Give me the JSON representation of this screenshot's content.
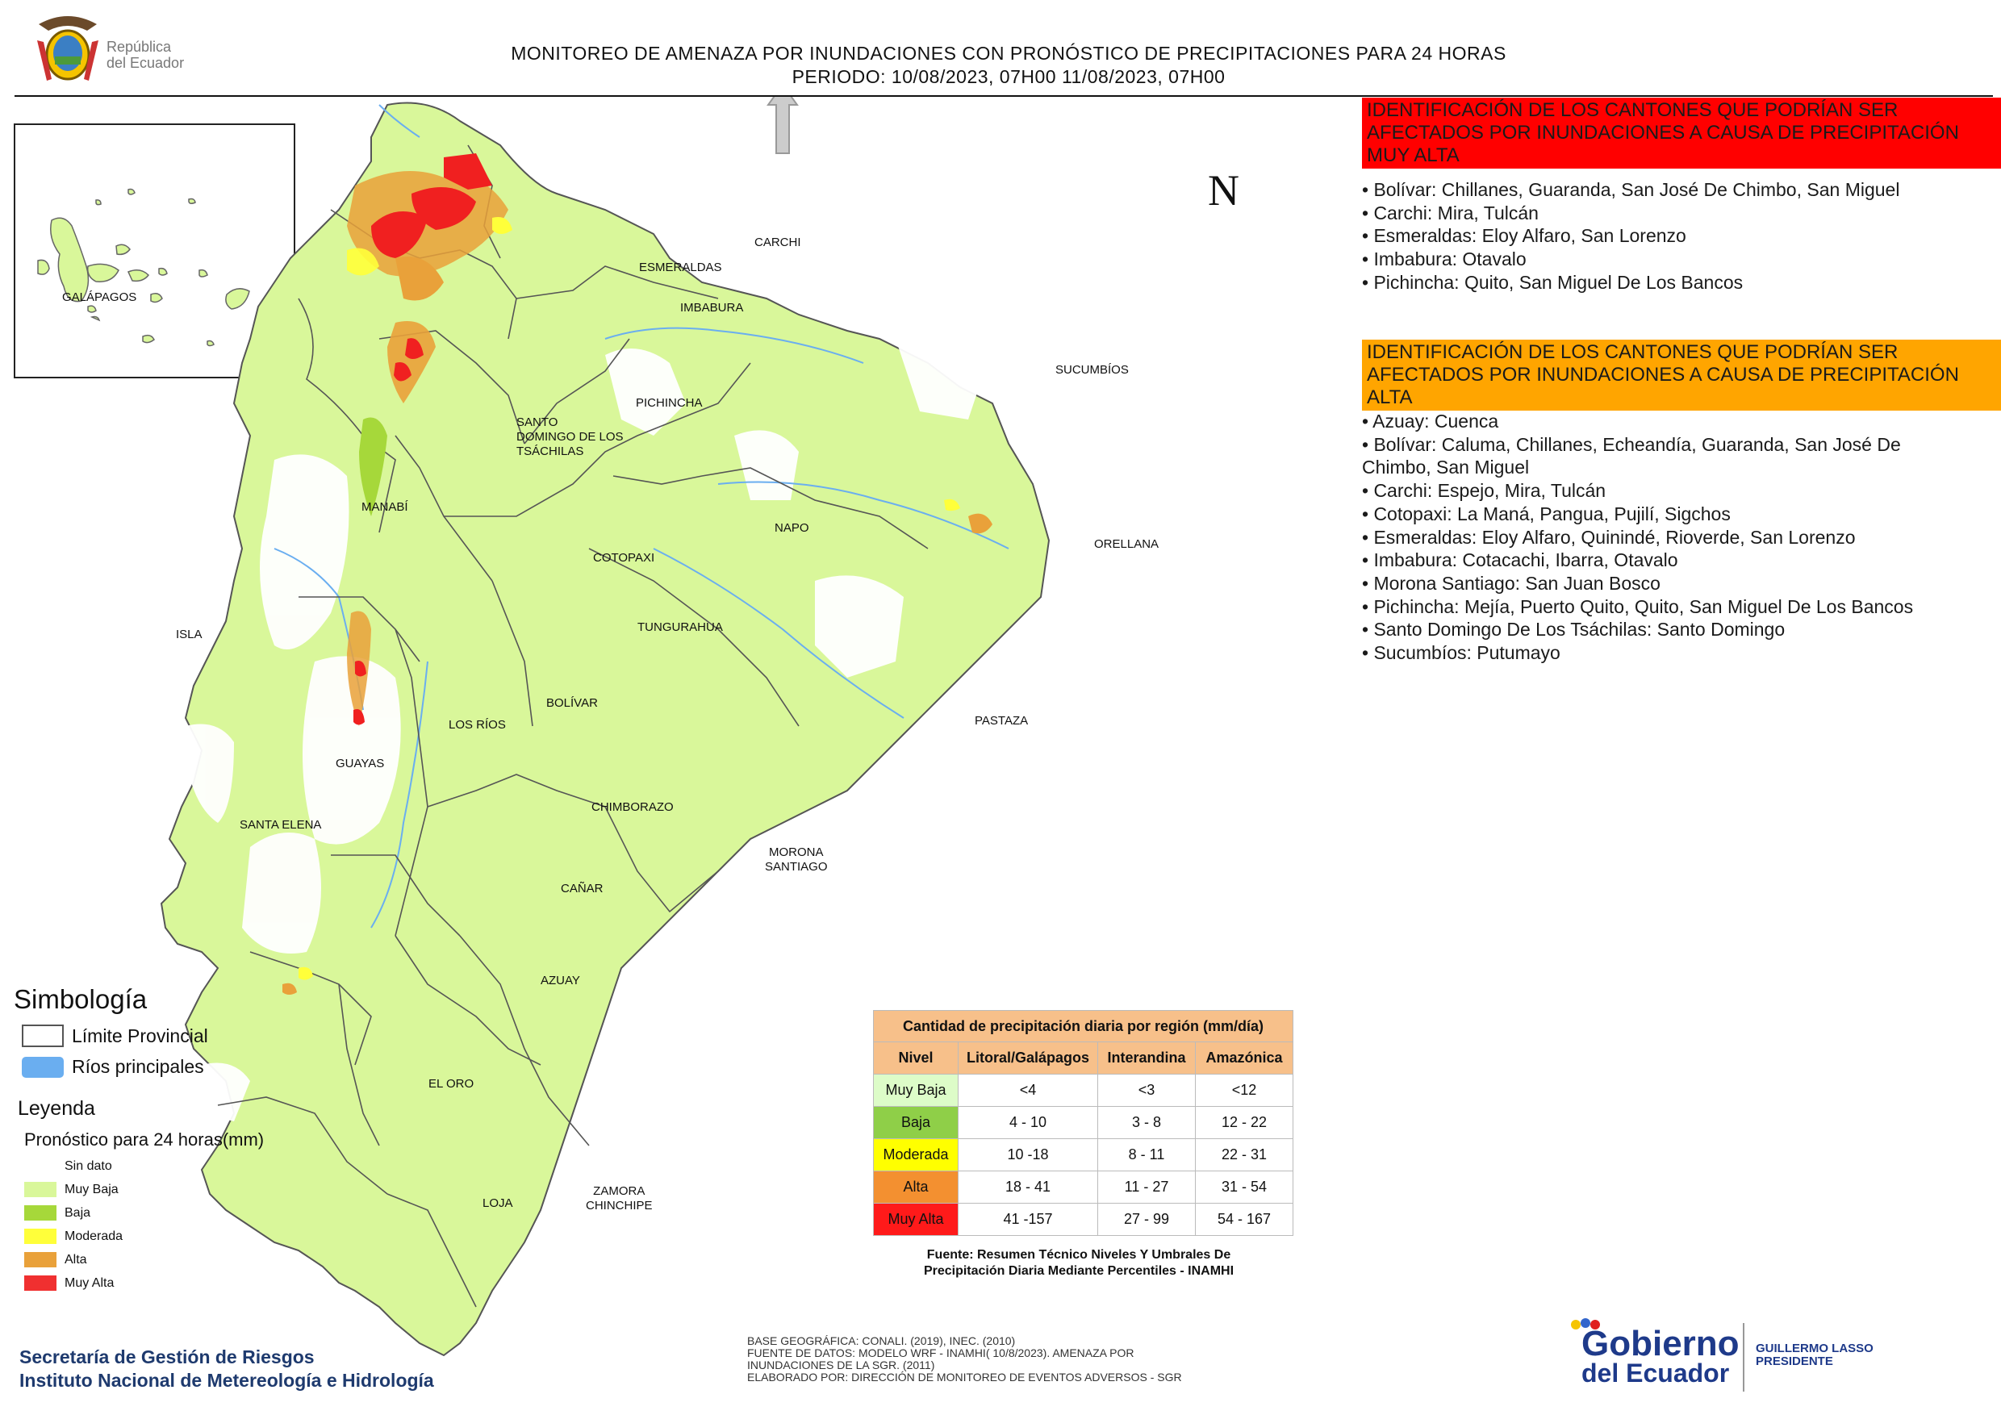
{
  "header": {
    "logo_line1": "República",
    "logo_line2": "del Ecuador",
    "title_line1": "MONITOREO DE AMENAZA POR INUNDACIONES  CON PRONÓSTICO DE  PRECIPITACIONES PARA 24 HORAS",
    "title_line2": "PERIODO: 10/08/2023, 07H00 11/08/2023, 07H00"
  },
  "map": {
    "north_label": "N",
    "inset_label": "GALÁPAGOS",
    "provinces": [
      "CARCHI",
      "ESMERALDAS",
      "IMBABURA",
      "SUCUMBÍOS",
      "PICHINCHA",
      "SANTO DOMINGO DE LOS TSÁCHILAS",
      "MANABÍ",
      "NAPO",
      "ORELLANA",
      "COTOPAXI",
      "ISLA",
      "TUNGURAHUA",
      "BOLÍVAR",
      "LOS RÍOS",
      "PASTAZA",
      "GUAYAS",
      "CHIMBORAZO",
      "SANTA ELENA",
      "MORONA SANTIAGO",
      "CAÑAR",
      "AZUAY",
      "EL ORO",
      "LOJA",
      "ZAMORA CHINCHIPE"
    ],
    "labels": {
      "carchi": "CARCHI",
      "esmeraldas": "ESMERALDAS",
      "imbabura": "IMBABURA",
      "sucumbios": "SUCUMBÍOS",
      "pichincha": "PICHINCHA",
      "sd1": "SANTO",
      "sd2": "DOMINGO DE LOS",
      "sd3": "TSÁCHILAS",
      "manabi": "MANABÍ",
      "napo": "NAPO",
      "orellana": "ORELLANA",
      "cotopaxi": "COTOPAXI",
      "isla": "ISLA",
      "tungurahua": "TUNGURAHUA",
      "bolivar": "BOLÍVAR",
      "losrios": "LOS RÍOS",
      "pastaza": "PASTAZA",
      "guayas": "GUAYAS",
      "chimborazo": "CHIMBORAZO",
      "santaelena": "SANTA ELENA",
      "morona1": "MORONA",
      "morona2": "SANTIAGO",
      "canar": "CAÑAR",
      "azuay": "AZUAY",
      "eloro": "EL ORO",
      "loja": "LOJA",
      "zamora1": "ZAMORA",
      "zamora2": "CHINCHIPE"
    },
    "colors": {
      "sin_dato": "#ffffff",
      "muy_baja": "#d9f79a",
      "baja": "#a6d83a",
      "moderada": "#ffff3a",
      "alta": "#e9a13a",
      "muy_alta": "#f02020",
      "rivers": "#6aaef0",
      "border": "#555555"
    }
  },
  "panel_muy_alta": {
    "title": "IDENTIFICACIÓN DE LOS CANTONES QUE PODRÍAN SER AFECTADOS POR INUNDACIONES  A CAUSA DE PRECIPITACIÓN MUY ALTA",
    "color": "#ff0000",
    "items": [
      "• Bolívar: Chillanes, Guaranda, San José De Chimbo, San Miguel",
      "• Carchi: Mira, Tulcán",
      "• Esmeraldas: Eloy Alfaro, San Lorenzo",
      "• Imbabura: Otavalo",
      "• Pichincha: Quito, San Miguel De Los Bancos"
    ]
  },
  "panel_alta": {
    "title": "IDENTIFICACIÓN DE LOS CANTONES QUE  PODRÍAN SER AFECTADOS POR INUNDACIONES  A CAUSA DE PRECIPITACIÓN ALTA",
    "color": "#ffa500",
    "items": [
      "• Azuay: Cuenca",
      "• Bolívar: Caluma, Chillanes, Echeandía, Guaranda, San José De",
      "Chimbo, San Miguel",
      "• Carchi: Espejo, Mira, Tulcán",
      "• Cotopaxi: La Maná, Pangua, Pujilí, Sigchos",
      "• Esmeraldas: Eloy Alfaro, Quinindé, Rioverde, San Lorenzo",
      "• Imbabura: Cotacachi, Ibarra, Otavalo",
      "• Morona Santiago: San Juan Bosco",
      "• Pichincha: Mejía, Puerto Quito, Quito, San Miguel De Los Bancos",
      "• Santo Domingo De Los Tsáchilas: Santo Domingo",
      "• Sucumbíos: Putumayo"
    ]
  },
  "legend": {
    "simbologia": "Simbología",
    "limite": "Límite Provincial",
    "rios": "Ríos principales",
    "leyenda": "Leyenda",
    "pronostico": "Pronóstico para 24 horas(mm)",
    "items": [
      {
        "label": "Sin dato",
        "color": "#ffffff"
      },
      {
        "label": "Muy Baja",
        "color": "#d9f79a"
      },
      {
        "label": "Baja",
        "color": "#a6d83a"
      },
      {
        "label": "Moderada",
        "color": "#ffff3a"
      },
      {
        "label": "Alta",
        "color": "#e9a13a"
      },
      {
        "label": "Muy Alta",
        "color": "#f03030"
      }
    ]
  },
  "threshold_table": {
    "title": "Cantidad de precipitación diaria por región (mm/día)",
    "headers": [
      "Nivel",
      "Litoral/Galápagos",
      "Interandina",
      "Amazónica"
    ],
    "rows": [
      {
        "nivel": "Muy Baja",
        "litoral": "<4",
        "interandina": "<3",
        "amazonica": "<12",
        "color": "#ddfcc8"
      },
      {
        "nivel": "Baja",
        "litoral": "4 - 10",
        "interandina": "3 - 8",
        "amazonica": "12 - 22",
        "color": "#8fcf48"
      },
      {
        "nivel": "Moderada",
        "litoral": "10 -18",
        "interandina": "8 - 11",
        "amazonica": "22 - 31",
        "color": "#ffff00"
      },
      {
        "nivel": "Alta",
        "litoral": "18 - 41",
        "interandina": "11 - 27",
        "amazonica": "31 - 54",
        "color": "#f39030"
      },
      {
        "nivel": "Muy Alta",
        "litoral": "41 -157",
        "interandina": "27 - 99",
        "amazonica": "54 - 167",
        "color": "#ff1a1a"
      }
    ],
    "source_line1": "Fuente: Resumen Técnico Niveles Y Umbrales De",
    "source_line2": "Precipitación Diaria Mediante Percentiles - INAMHI"
  },
  "footer": {
    "agency1": "Secretaría de Gestión de Riesgos",
    "agency2": "Instituto Nacional de Metereología e Hidrología",
    "credits": [
      "BASE GEOGRÁFICA: CONALI. (2019), INEC. (2010)",
      "FUENTE DE DATOS: MODELO WRF - INAMHI( 10/8/2023).  AMENAZA POR",
      "INUNDACIONES DE LA SGR. (2011)",
      "ELABORADO POR: DIRECCIÓN DE MONITOREO DE EVENTOS ADVERSOS - SGR"
    ],
    "gov_line1": "Gobierno",
    "gov_line2": "del Ecuador",
    "president_line1": "GUILLERMO LASSO",
    "president_line2": "PRESIDENTE"
  }
}
